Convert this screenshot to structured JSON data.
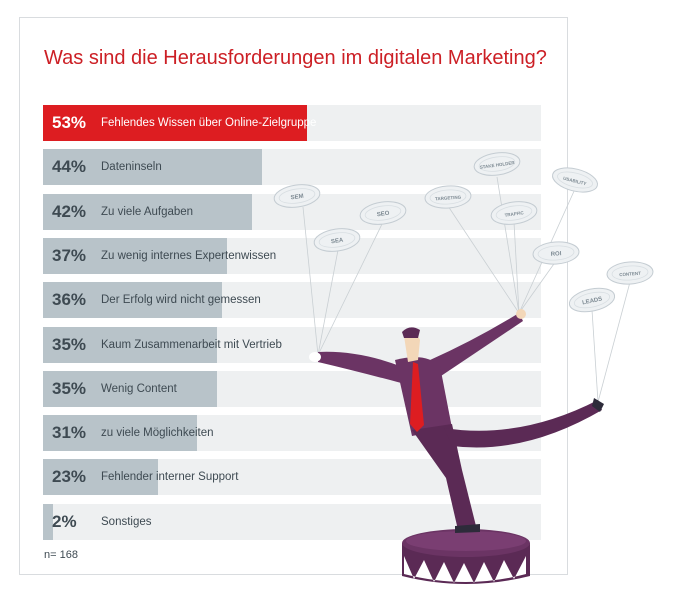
{
  "chart_data": {
    "type": "bar",
    "orientation": "horizontal",
    "title": "Was sind die Herausforderungen im digitalen Marketing?",
    "xlim": [
      0,
      100
    ],
    "categories": [
      "Fehlendes Wissen über Online-Zielgruppe",
      "Dateninseln",
      "Zu viele Aufgaben",
      "Zu wenig internes Expertenwissen",
      "Der Erfolg wird nicht gemessen",
      "Kaum Zusammenarbeit mit Vertrieb",
      "Wenig Content",
      "zu viele Möglichkeiten",
      "Fehlender interner Support",
      "Sonstiges"
    ],
    "values": [
      53,
      44,
      42,
      37,
      36,
      35,
      35,
      31,
      23,
      2
    ],
    "value_labels": [
      "53%",
      "44%",
      "42%",
      "37%",
      "36%",
      "35%",
      "35%",
      "31%",
      "23%",
      "2%"
    ],
    "highlight_index": 0,
    "colors": {
      "highlight": "#dd1d21",
      "bar": "#b8c3c9",
      "track": "#eef0f1",
      "title": "#cc1f25",
      "text": "#3e4a52"
    },
    "note": "n= 168"
  },
  "illustration": {
    "balloons": [
      {
        "label": "SEM"
      },
      {
        "label": "SEA"
      },
      {
        "label": "SEO"
      },
      {
        "label": "TARGETING"
      },
      {
        "label": "STAKE HOLDER"
      },
      {
        "label": "TRAFFIC"
      },
      {
        "label": "USABILITY"
      },
      {
        "label": "ROI"
      },
      {
        "label": "LEADS"
      },
      {
        "label": "CONTENT"
      }
    ]
  }
}
